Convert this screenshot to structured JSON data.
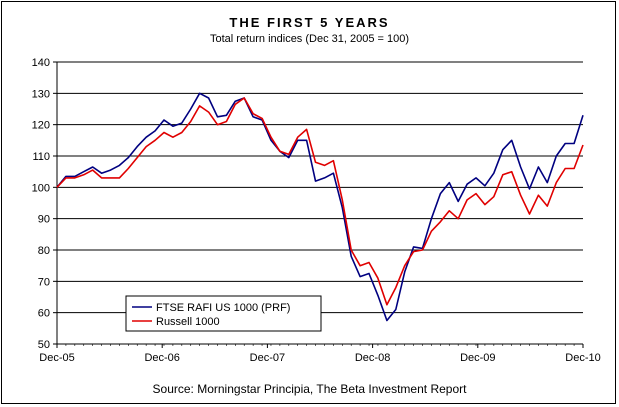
{
  "chart_data": {
    "type": "line",
    "title": "THE FIRST 5 YEARS",
    "subtitle": "Total return indices (Dec 31, 2005 = 100)",
    "source": "Source: Morningstar Principia, The Beta Investment Report",
    "xlabel": "",
    "ylabel": "",
    "ylim": [
      50,
      140
    ],
    "yticks": [
      50,
      60,
      70,
      80,
      90,
      100,
      110,
      120,
      130,
      140
    ],
    "xtick_labels": [
      "Dec-05",
      "Dec-06",
      "Dec-07",
      "Dec-08",
      "Dec-09",
      "Dec-10"
    ],
    "grid": "horizontal",
    "legend_position": "bottom-left",
    "series": [
      {
        "name": "FTSE RAFI US 1000 (PRF)",
        "color": "#000080",
        "values": [
          100,
          103.5,
          103.5,
          105,
          106.5,
          104.5,
          105.5,
          107,
          109.5,
          113,
          116,
          118,
          121.5,
          119.5,
          120.5,
          125,
          130,
          128.5,
          122.5,
          123,
          127.5,
          128.5,
          122.5,
          121.5,
          115,
          111.5,
          109.5,
          115,
          115,
          102,
          103,
          104.5,
          93.5,
          78,
          71.5,
          72.5,
          65.5,
          57.5,
          61,
          73,
          81,
          80.5,
          90,
          98,
          101.5,
          95.5,
          101,
          103,
          100.5,
          104.5,
          112,
          115,
          106.5,
          99.5,
          106.5,
          101.5,
          110,
          114,
          114,
          123
        ]
      },
      {
        "name": "Russell 1000",
        "color": "#e00000",
        "values": [
          100,
          103,
          103,
          104,
          105.5,
          103,
          103,
          103,
          106,
          109.5,
          113,
          115,
          117.5,
          116,
          117.5,
          121,
          126,
          124,
          120,
          121,
          126.5,
          128.5,
          123.5,
          122,
          116,
          111.5,
          110.5,
          116,
          118.5,
          108,
          107,
          108.5,
          96,
          80,
          75,
          76,
          71,
          62.5,
          68,
          75,
          79.5,
          80,
          86,
          89,
          92.5,
          90,
          96,
          98,
          94.5,
          97,
          104,
          105,
          97.5,
          91.5,
          97.5,
          94,
          101.5,
          106,
          106,
          113.5
        ]
      }
    ]
  }
}
